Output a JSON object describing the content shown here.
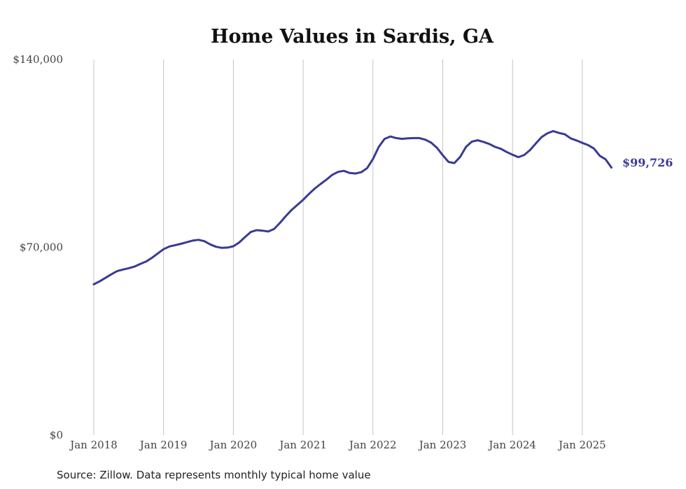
{
  "chart_data": {
    "type": "line",
    "title": "Home Values in Sardis, GA",
    "xlabel": "",
    "ylabel": "",
    "source": "Source: Zillow. Data represents monthly typical home value",
    "ylim": [
      0,
      140000
    ],
    "y_ticks": [
      {
        "value": 0,
        "label": "$0"
      },
      {
        "value": 70000,
        "label": "$70,000"
      },
      {
        "value": 140000,
        "label": "$140,000"
      }
    ],
    "x_ticks": [
      {
        "value": 2018,
        "label": "Jan 2018"
      },
      {
        "value": 2019,
        "label": "Jan 2019"
      },
      {
        "value": 2020,
        "label": "Jan 2020"
      },
      {
        "value": 2021,
        "label": "Jan 2021"
      },
      {
        "value": 2022,
        "label": "Jan 2022"
      },
      {
        "value": 2023,
        "label": "Jan 2023"
      },
      {
        "value": 2024,
        "label": "Jan 2024"
      },
      {
        "value": 2025,
        "label": "Jan 2025"
      }
    ],
    "xlim": [
      2018,
      2025.4167
    ],
    "grid": "vertical",
    "line_color": "#3a3a94",
    "end_label": "$99,726",
    "series": [
      {
        "name": "Typical home value",
        "x": [
          2018.0,
          2018.083,
          2018.167,
          2018.25,
          2018.333,
          2018.417,
          2018.5,
          2018.583,
          2018.667,
          2018.75,
          2018.833,
          2018.917,
          2019.0,
          2019.083,
          2019.167,
          2019.25,
          2019.333,
          2019.417,
          2019.5,
          2019.583,
          2019.667,
          2019.75,
          2019.833,
          2019.917,
          2020.0,
          2020.083,
          2020.167,
          2020.25,
          2020.333,
          2020.417,
          2020.5,
          2020.583,
          2020.667,
          2020.75,
          2020.833,
          2020.917,
          2021.0,
          2021.083,
          2021.167,
          2021.25,
          2021.333,
          2021.417,
          2021.5,
          2021.583,
          2021.667,
          2021.75,
          2021.833,
          2021.917,
          2022.0,
          2022.083,
          2022.167,
          2022.25,
          2022.333,
          2022.417,
          2022.5,
          2022.583,
          2022.667,
          2022.75,
          2022.833,
          2022.917,
          2023.0,
          2023.083,
          2023.167,
          2023.25,
          2023.333,
          2023.417,
          2023.5,
          2023.583,
          2023.667,
          2023.75,
          2023.833,
          2023.917,
          2024.0,
          2024.083,
          2024.167,
          2024.25,
          2024.333,
          2024.417,
          2024.5,
          2024.583,
          2024.667,
          2024.75,
          2024.833,
          2024.917,
          2025.0,
          2025.083,
          2025.167,
          2025.25,
          2025.333,
          2025.417
        ],
        "values": [
          56200,
          57300,
          58600,
          59900,
          61100,
          61700,
          62200,
          62800,
          63800,
          64700,
          66100,
          67700,
          69300,
          70300,
          70800,
          71300,
          71900,
          72500,
          72800,
          72300,
          71100,
          70200,
          69800,
          69900,
          70400,
          71800,
          73800,
          75700,
          76400,
          76200,
          75900,
          76800,
          79100,
          81600,
          83900,
          85800,
          87700,
          89900,
          91900,
          93600,
          95200,
          97000,
          98100,
          98500,
          97700,
          97500,
          98000,
          99500,
          102900,
          107400,
          110400,
          111300,
          110700,
          110400,
          110600,
          110700,
          110700,
          110100,
          109000,
          107100,
          104300,
          101800,
          101400,
          103700,
          107400,
          109400,
          109900,
          109300,
          108500,
          107400,
          106700,
          105500,
          104500,
          103600,
          104400,
          106200,
          108700,
          111100,
          112500,
          113300,
          112600,
          112100,
          110600,
          109800,
          108900,
          108100,
          106800,
          104100,
          102800,
          99726
        ]
      }
    ]
  }
}
